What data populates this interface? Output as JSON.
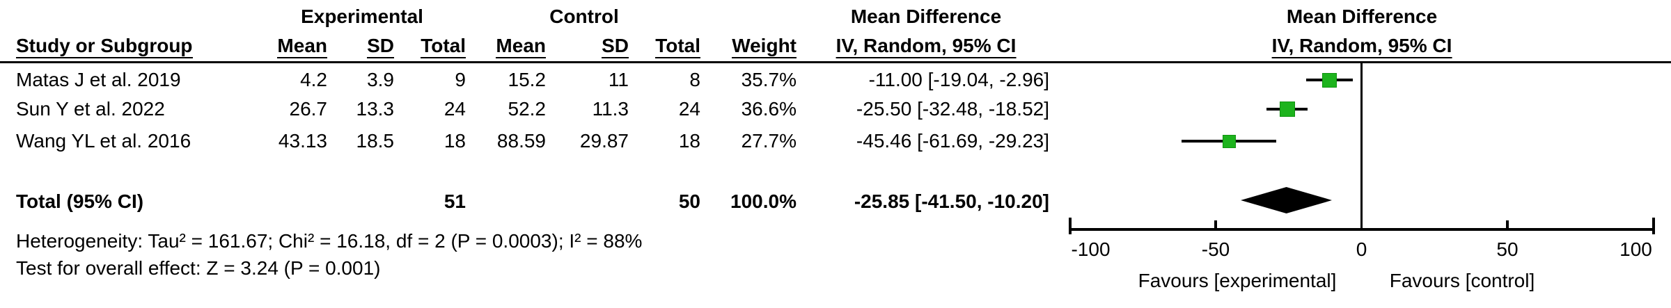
{
  "header": {
    "group_experimental": "Experimental",
    "group_control": "Control",
    "md_text_col": {
      "line1": "Mean Difference",
      "line2": "IV, Random, 95% CI"
    },
    "md_plot_col": {
      "line1": "Mean Difference",
      "line2": "IV, Random, 95% CI"
    },
    "columns": {
      "study": "Study or Subgroup",
      "exp_mean": "Mean",
      "exp_sd": "SD",
      "exp_total": "Total",
      "ctrl_mean": "Mean",
      "ctrl_sd": "SD",
      "ctrl_total": "Total",
      "weight": "Weight"
    }
  },
  "chart_data": {
    "type": "forest",
    "effect_measure": "Mean Difference",
    "method": "IV, Random, 95% CI",
    "x_axis": {
      "min": -100,
      "max": 100,
      "ticks": [
        -100,
        -50,
        0,
        50,
        100
      ],
      "zero_line": 0,
      "favours_left": "Favours [experimental]",
      "favours_right": "Favours [control]"
    },
    "studies": [
      {
        "study": "Matas J et al. 2019",
        "exp_mean": "4.2",
        "exp_sd": "3.9",
        "exp_total": "9",
        "ctrl_mean": "15.2",
        "ctrl_sd": "11",
        "ctrl_total": "8",
        "weight": "35.7%",
        "weight_pct": 35.7,
        "ci_label": "-11.00 [-19.04, -2.96]",
        "md": -11.0,
        "ci_low": -19.04,
        "ci_high": -2.96
      },
      {
        "study": "Sun Y et al. 2022",
        "exp_mean": "26.7",
        "exp_sd": "13.3",
        "exp_total": "24",
        "ctrl_mean": "52.2",
        "ctrl_sd": "11.3",
        "ctrl_total": "24",
        "weight": "36.6%",
        "weight_pct": 36.6,
        "ci_label": "-25.50 [-32.48, -18.52]",
        "md": -25.5,
        "ci_low": -32.48,
        "ci_high": -18.52
      },
      {
        "study": "Wang YL et al. 2016",
        "exp_mean": "43.13",
        "exp_sd": "18.5",
        "exp_total": "18",
        "ctrl_mean": "88.59",
        "ctrl_sd": "29.87",
        "ctrl_total": "18",
        "weight": "27.7%",
        "weight_pct": 27.7,
        "ci_label": "-45.46 [-61.69, -29.23]",
        "md": -45.46,
        "ci_low": -61.69,
        "ci_high": -29.23
      }
    ],
    "total": {
      "label": "Total (95% CI)",
      "exp_total": "51",
      "ctrl_total": "50",
      "weight": "100.0%",
      "ci_label": "-25.85 [-41.50, -10.20]",
      "md": -25.85,
      "ci_low": -41.5,
      "ci_high": -10.2
    }
  },
  "footnotes": {
    "heterogeneity": "Heterogeneity: Tau² = 161.67; Chi² = 16.18, df = 2 (P = 0.0003); I² = 88%",
    "overall_effect": "Test for overall effect: Z = 3.24 (P = 0.001)"
  },
  "colors": {
    "marker_fill": "#1db31d",
    "marker_border": "#0f930f",
    "diamond": "#000000",
    "line": "#000000",
    "text": "#000000"
  }
}
